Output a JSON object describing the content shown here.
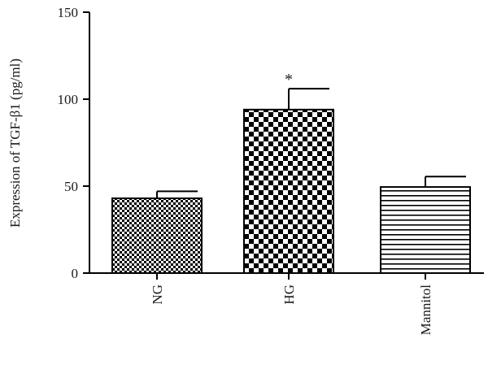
{
  "chart_data": {
    "type": "bar",
    "title": "",
    "xlabel": "",
    "ylabel": "Expression of TGF-β1 (pg/ml)",
    "ylim": [
      0,
      150
    ],
    "yticks": [
      "0",
      "50",
      "100",
      "150"
    ],
    "categories": [
      "NG",
      "HG",
      "Mannitol"
    ],
    "values": [
      43,
      94,
      49.5
    ],
    "error": [
      4,
      12,
      6
    ],
    "annotations": [
      "",
      "*",
      ""
    ],
    "fills": [
      "fine-checker",
      "coarse-checker",
      "horizontal-stripes"
    ],
    "grid": false,
    "legend": "none"
  },
  "colors": {
    "bar_dark": "#000000",
    "bar_light": "#ffffff",
    "axis": "#000000"
  }
}
